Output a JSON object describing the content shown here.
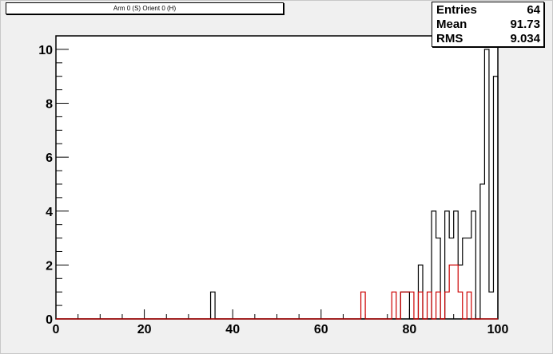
{
  "title": "Arm 0 (S) Orient 0 (H)",
  "stats": [
    {
      "key": "Entries",
      "value": "64"
    },
    {
      "key": "Mean",
      "value": "91.73"
    },
    {
      "key": "RMS",
      "value": "9.034"
    }
  ],
  "colors": {
    "primary": "#000000",
    "secondary": "#cc0000",
    "pad": "#f0f0f0",
    "frame": "#ffffff"
  },
  "chart_data": {
    "type": "histogram",
    "title": "Arm 0 (S) Orient 0 (H)",
    "xlim": [
      0,
      100
    ],
    "ylim": [
      0,
      10.5
    ],
    "bin_width": 1,
    "x_ticks": [
      0,
      20,
      40,
      60,
      80,
      100
    ],
    "x_tick_labels": [
      "0",
      "20",
      "40",
      "60",
      "80",
      "100"
    ],
    "y_ticks": [
      0,
      2,
      4,
      6,
      8,
      10
    ],
    "y_tick_labels": [
      "0",
      "2",
      "4",
      "6",
      "8",
      "10"
    ],
    "series": [
      {
        "color": "#000000",
        "bins": [
          [
            35,
            1
          ],
          [
            78,
            1
          ],
          [
            79,
            1
          ],
          [
            82,
            2
          ],
          [
            85,
            4
          ],
          [
            86,
            3
          ],
          [
            88,
            4
          ],
          [
            89,
            3
          ],
          [
            90,
            4
          ],
          [
            91,
            2
          ],
          [
            92,
            3
          ],
          [
            93,
            3
          ],
          [
            94,
            4
          ],
          [
            96,
            5
          ],
          [
            97,
            10
          ],
          [
            98,
            1
          ],
          [
            99,
            9
          ],
          [
            100,
            1
          ]
        ]
      },
      {
        "color": "#cc0000",
        "bins": [
          [
            69,
            1
          ],
          [
            76,
            1
          ],
          [
            78,
            1
          ],
          [
            79,
            1
          ],
          [
            80,
            1
          ],
          [
            82,
            1
          ],
          [
            84,
            1
          ],
          [
            86,
            1
          ],
          [
            88,
            1
          ],
          [
            89,
            2
          ],
          [
            90,
            2
          ],
          [
            91,
            1
          ],
          [
            93,
            1
          ]
        ]
      }
    ]
  }
}
